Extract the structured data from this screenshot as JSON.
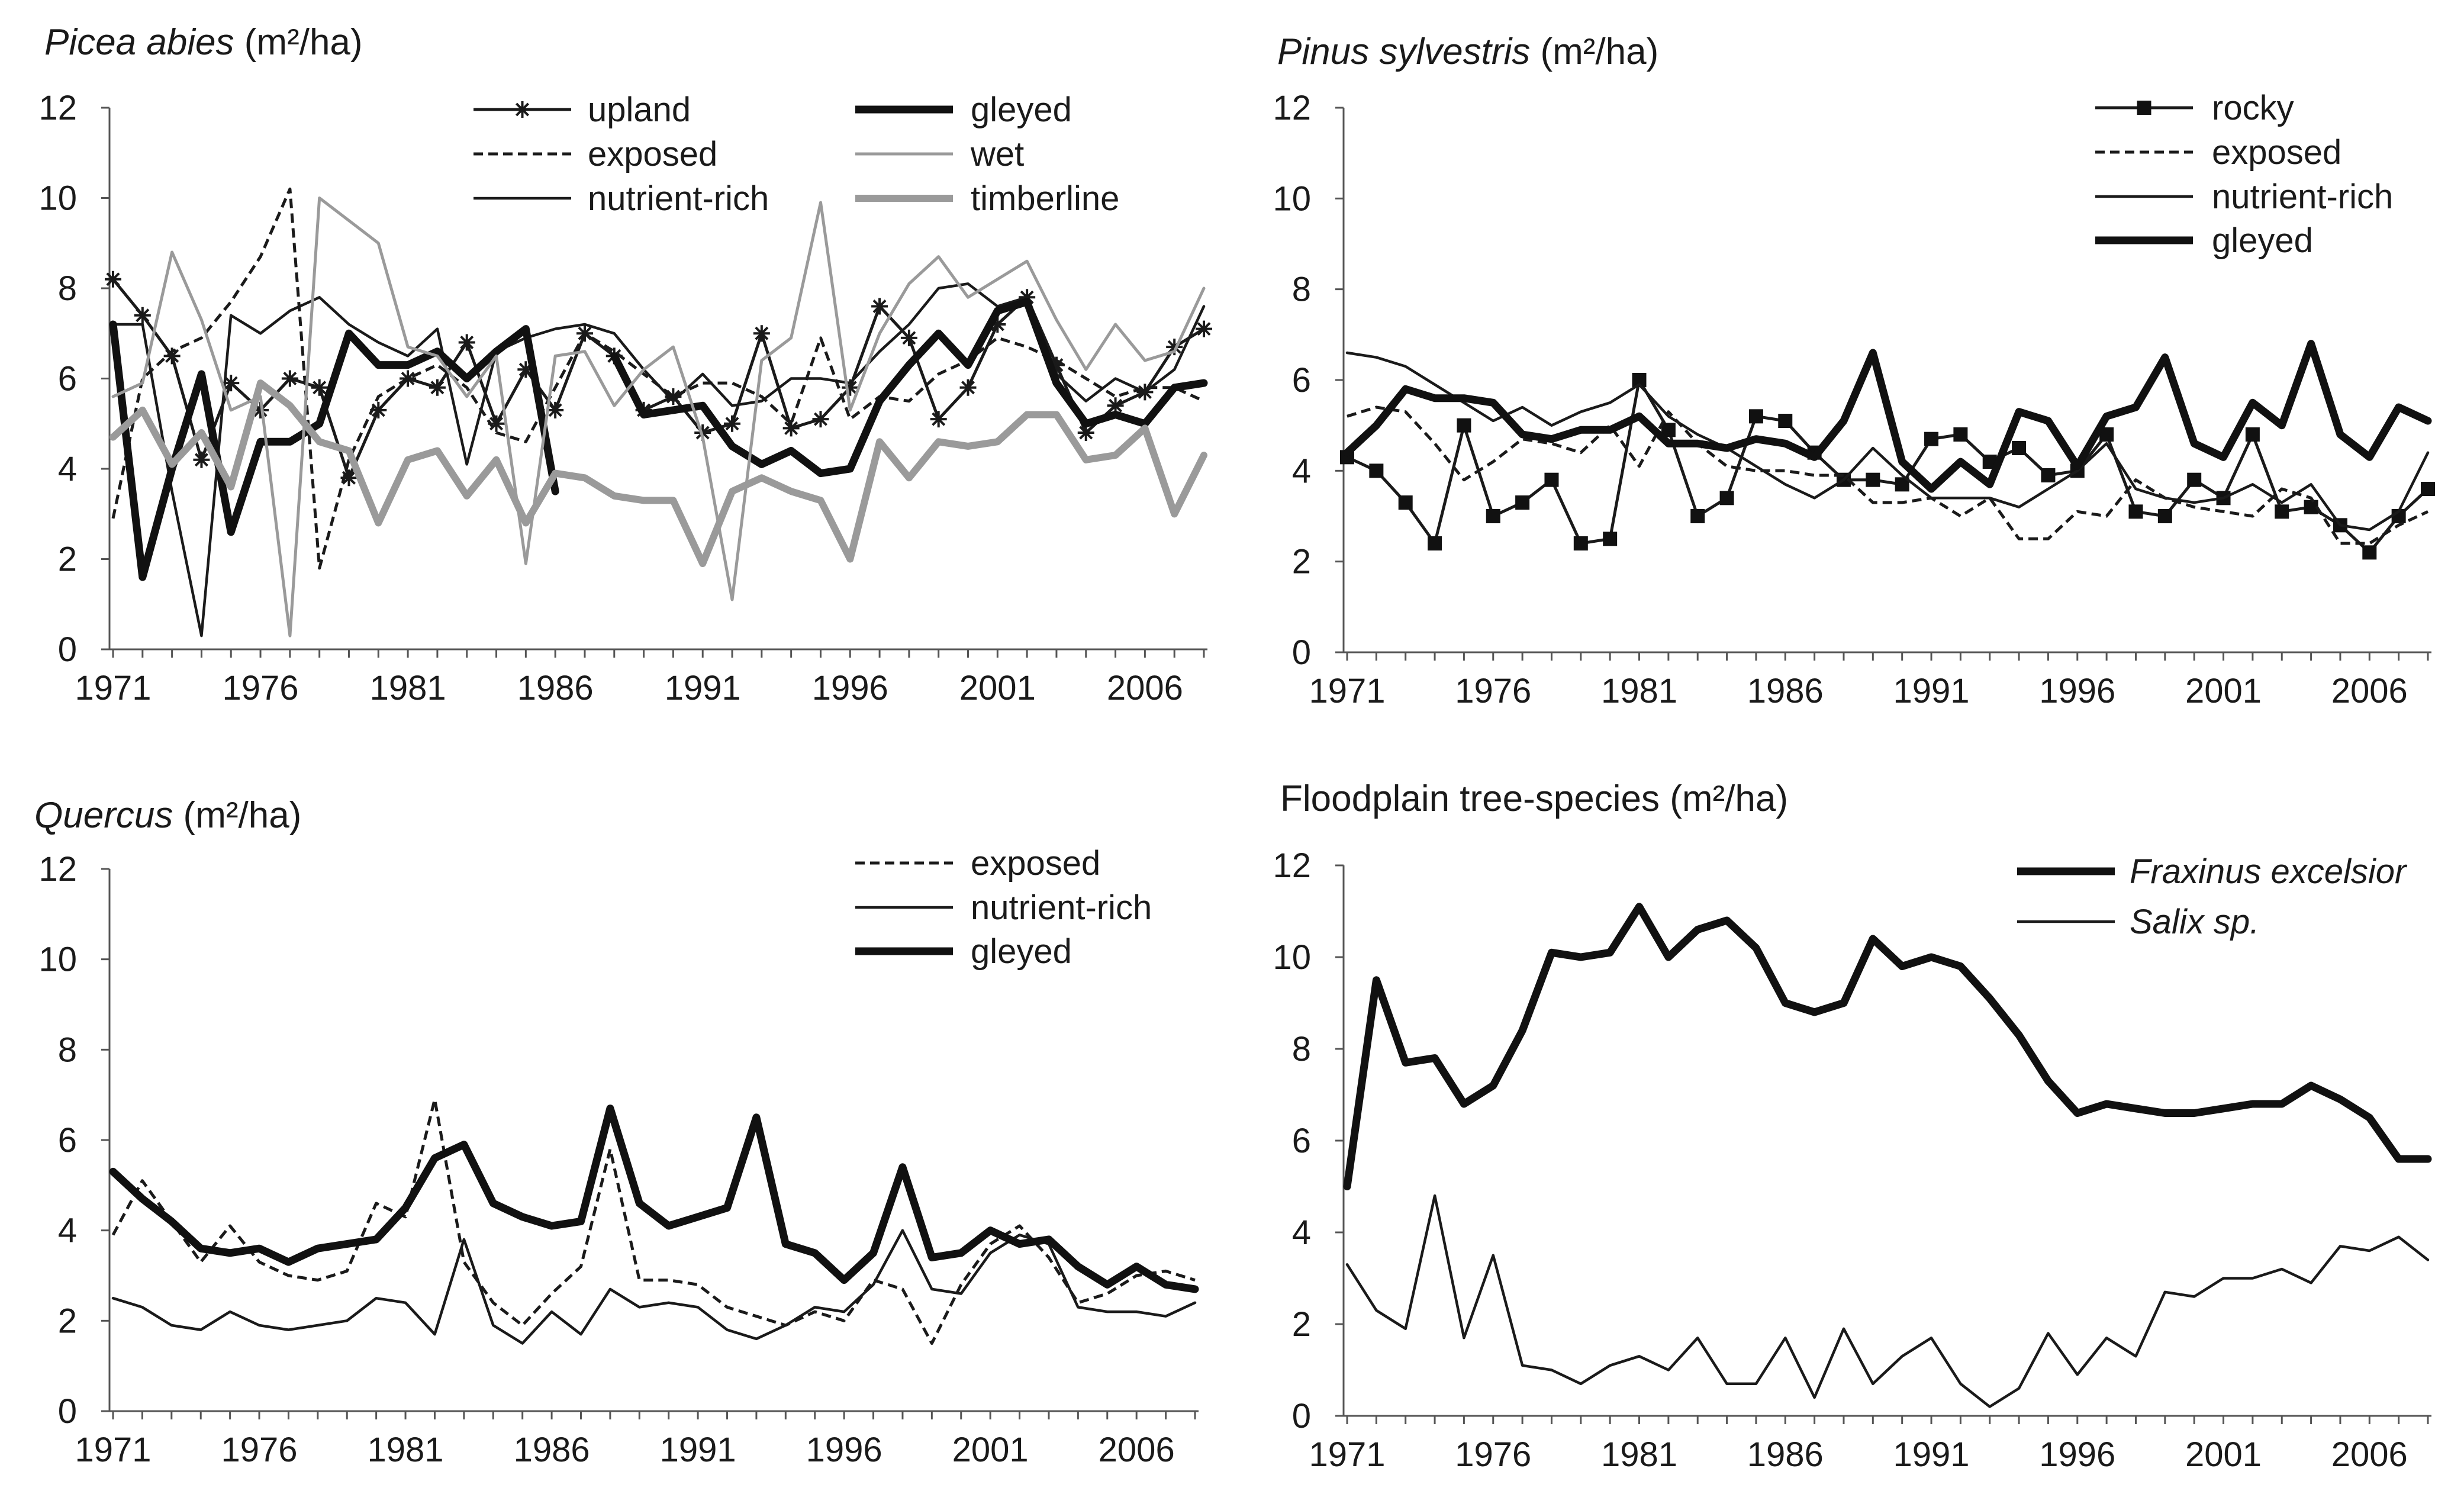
{
  "chart_data": [
    {
      "type": "line",
      "title_italic": "Picea abies",
      "title_rest": " (m²/ha)",
      "xlabel": "",
      "ylabel": "m²/ha",
      "ylim": [
        0,
        12
      ],
      "yticks": [
        0,
        2,
        4,
        6,
        8,
        10,
        12
      ],
      "xticks": [
        1971,
        1976,
        1981,
        1986,
        1991,
        1996,
        2001,
        2006
      ],
      "x_start": 1971,
      "x_end": 2008,
      "legend_position": "top",
      "series": [
        {
          "name": "upland",
          "italic": false,
          "style": "thin-star",
          "values": [
            8.2,
            7.4,
            6.5,
            4.2,
            5.9,
            5.3,
            6.0,
            5.8,
            3.8,
            5.3,
            6.0,
            5.8,
            6.8,
            5.0,
            6.2,
            5.3,
            7.0,
            6.5,
            5.3,
            5.6,
            4.8,
            5.0,
            7.0,
            4.9,
            5.1,
            5.8,
            7.6,
            6.9,
            5.1,
            5.8,
            7.2,
            7.8,
            6.3,
            4.8,
            5.4,
            5.7,
            6.7,
            7.1
          ]
        },
        {
          "name": "exposed",
          "italic": false,
          "style": "dashed",
          "values": [
            2.9,
            6.0,
            6.6,
            6.9,
            7.7,
            8.7,
            10.2,
            1.8,
            4.2,
            5.6,
            6.0,
            6.3,
            5.8,
            4.8,
            4.6,
            5.8,
            7.0,
            6.6,
            6.1,
            5.6,
            5.9,
            5.9,
            5.6,
            5.0,
            6.9,
            5.1,
            5.6,
            5.5,
            6.1,
            6.4,
            6.9,
            6.7,
            6.4,
            6.0,
            5.6,
            5.8,
            5.8,
            5.5
          ]
        },
        {
          "name": "nutrient-rich",
          "italic": false,
          "style": "thin",
          "values": [
            7.2,
            7.2,
            3.5,
            0.3,
            7.4,
            7.0,
            7.5,
            7.8,
            7.2,
            6.8,
            6.5,
            7.1,
            4.1,
            6.6,
            6.9,
            7.1,
            7.2,
            7.0,
            6.2,
            5.5,
            6.1,
            5.4,
            5.5,
            6.0,
            6.0,
            5.9,
            6.6,
            7.2,
            8.0,
            8.1,
            7.6,
            7.8,
            6.1,
            5.5,
            6.0,
            5.7,
            6.2,
            7.6
          ]
        },
        {
          "name": "gleyed",
          "italic": false,
          "style": "thick",
          "values": [
            7.2,
            1.6,
            4.0,
            6.1,
            2.6,
            4.6,
            4.6,
            5.0,
            7.0,
            6.3,
            6.3,
            6.6,
            6.0,
            6.6,
            7.1,
            3.5,
            null,
            6.5,
            5.2,
            5.3,
            5.4,
            4.5,
            4.1,
            4.4,
            3.9,
            4.0,
            5.5,
            6.3,
            7.0,
            6.3,
            7.5,
            7.7,
            5.9,
            5.0,
            5.2,
            5.0,
            5.8,
            5.9
          ]
        },
        {
          "name": "wet",
          "italic": false,
          "style": "thin-gray",
          "values": [
            5.6,
            5.9,
            8.8,
            7.3,
            5.3,
            5.6,
            0.3,
            10.0,
            9.5,
            9.0,
            6.7,
            6.5,
            5.6,
            6.5,
            1.9,
            6.5,
            6.6,
            5.4,
            6.2,
            6.7,
            4.7,
            1.1,
            6.4,
            6.9,
            9.9,
            5.3,
            7.0,
            8.1,
            8.7,
            7.8,
            8.2,
            8.6,
            7.3,
            6.2,
            7.2,
            6.4,
            6.6,
            8.0
          ]
        },
        {
          "name": "timberline",
          "italic": false,
          "style": "thick-gray",
          "values": [
            4.7,
            5.3,
            4.1,
            4.8,
            3.6,
            5.9,
            5.4,
            4.6,
            4.4,
            2.8,
            4.2,
            4.4,
            3.4,
            4.2,
            2.8,
            3.9,
            3.8,
            3.4,
            3.3,
            3.3,
            1.9,
            3.5,
            3.8,
            3.5,
            3.3,
            2.0,
            4.6,
            3.8,
            4.6,
            4.5,
            4.6,
            5.2,
            5.2,
            4.2,
            4.3,
            4.9,
            3.0,
            4.3
          ]
        }
      ]
    },
    {
      "type": "line",
      "title_italic": "Pinus sylvestris",
      "title_rest": " (m²/ha)",
      "xlabel": "",
      "ylabel": "m²/ha",
      "ylim": [
        0,
        12
      ],
      "yticks": [
        0,
        2,
        4,
        6,
        8,
        10,
        12
      ],
      "xticks": [
        1971,
        1976,
        1981,
        1986,
        1991,
        1996,
        2001,
        2006
      ],
      "x_start": 1971,
      "x_end": 2008,
      "legend_position": "top-right",
      "series": [
        {
          "name": "rocky",
          "italic": false,
          "style": "thin-square",
          "values": [
            4.3,
            4.0,
            3.3,
            2.4,
            5.0,
            3.0,
            3.3,
            3.8,
            2.4,
            2.5,
            6.0,
            4.9,
            3.0,
            3.4,
            5.2,
            5.1,
            4.4,
            3.8,
            3.8,
            3.7,
            4.7,
            4.8,
            4.2,
            4.5,
            3.9,
            4.0,
            4.8,
            3.1,
            3.0,
            3.8,
            3.4,
            4.8,
            3.1,
            3.2,
            2.8,
            2.2,
            3.0,
            3.6
          ]
        },
        {
          "name": "exposed",
          "italic": false,
          "style": "dashed",
          "values": [
            5.2,
            5.4,
            5.3,
            4.6,
            3.8,
            4.2,
            4.7,
            4.6,
            4.4,
            5.0,
            4.1,
            5.3,
            4.6,
            4.1,
            4.0,
            4.0,
            3.9,
            3.9,
            3.3,
            3.3,
            3.4,
            3.0,
            3.4,
            2.5,
            2.5,
            3.1,
            3.0,
            3.8,
            3.4,
            3.2,
            3.1,
            3.0,
            3.6,
            3.4,
            2.4,
            2.4,
            2.8,
            3.1
          ]
        },
        {
          "name": "nutrient-rich",
          "italic": false,
          "style": "thin",
          "values": [
            6.6,
            6.5,
            6.3,
            5.9,
            5.5,
            5.1,
            5.4,
            5.0,
            5.3,
            5.5,
            5.9,
            5.2,
            4.8,
            4.5,
            4.1,
            3.7,
            3.4,
            3.8,
            4.5,
            3.9,
            3.4,
            3.4,
            3.4,
            3.2,
            3.6,
            4.0,
            4.6,
            3.6,
            3.4,
            3.3,
            3.4,
            3.7,
            3.3,
            3.7,
            2.8,
            2.7,
            3.1,
            4.4
          ]
        },
        {
          "name": "gleyed",
          "italic": false,
          "style": "thick",
          "values": [
            4.4,
            5.0,
            5.8,
            5.6,
            5.6,
            5.5,
            4.8,
            4.7,
            4.9,
            4.9,
            5.2,
            4.6,
            4.6,
            4.5,
            4.7,
            4.6,
            4.3,
            5.1,
            6.6,
            4.2,
            3.6,
            4.2,
            3.7,
            5.3,
            5.1,
            4.1,
            5.2,
            5.4,
            6.5,
            4.6,
            4.3,
            5.5,
            5.0,
            6.8,
            4.8,
            4.3,
            5.4,
            5.1
          ]
        }
      ]
    },
    {
      "type": "line",
      "title_italic": "Quercus",
      "title_rest": " (m²/ha)",
      "xlabel": "",
      "ylabel": "m²/ha",
      "ylim": [
        0,
        12
      ],
      "yticks": [
        0,
        2,
        4,
        6,
        8,
        10,
        12
      ],
      "xticks": [
        1971,
        1976,
        1981,
        1986,
        1991,
        1996,
        2001,
        2006
      ],
      "x_start": 1971,
      "x_end": 2008,
      "legend_position": "top-right",
      "series": [
        {
          "name": "exposed",
          "italic": false,
          "style": "dashed",
          "values": [
            3.9,
            5.1,
            4.2,
            3.3,
            4.1,
            3.3,
            3.0,
            2.9,
            3.1,
            4.6,
            4.3,
            6.9,
            3.3,
            2.4,
            1.9,
            2.6,
            3.2,
            5.8,
            2.9,
            2.9,
            2.8,
            2.3,
            2.1,
            1.9,
            2.2,
            2.0,
            2.9,
            2.7,
            1.5,
            2.8,
            3.7,
            4.1,
            3.4,
            2.4,
            2.6,
            3.0,
            3.1,
            2.9
          ]
        },
        {
          "name": "nutrient-rich",
          "italic": false,
          "style": "thin",
          "values": [
            2.5,
            2.3,
            1.9,
            1.8,
            2.2,
            1.9,
            1.8,
            1.9,
            2.0,
            2.5,
            2.4,
            1.7,
            3.8,
            1.9,
            1.5,
            2.2,
            1.7,
            2.7,
            2.3,
            2.4,
            2.3,
            1.8,
            1.6,
            1.9,
            2.3,
            2.2,
            2.8,
            4.0,
            2.7,
            2.6,
            3.5,
            3.9,
            3.7,
            2.3,
            2.2,
            2.2,
            2.1,
            2.4
          ]
        },
        {
          "name": "gleyed",
          "italic": false,
          "style": "thick",
          "values": [
            5.3,
            4.7,
            4.2,
            3.6,
            3.5,
            3.6,
            3.3,
            3.6,
            3.7,
            3.8,
            4.5,
            5.6,
            5.9,
            4.6,
            4.3,
            4.1,
            4.2,
            6.7,
            4.6,
            4.1,
            4.3,
            4.5,
            6.5,
            3.7,
            3.5,
            2.9,
            3.5,
            5.4,
            3.4,
            3.5,
            4.0,
            3.7,
            3.8,
            3.2,
            2.8,
            3.2,
            2.8,
            2.7
          ]
        }
      ]
    },
    {
      "type": "line",
      "title_italic": "",
      "title_rest": "Floodplain tree-species (m²/ha)",
      "xlabel": "",
      "ylabel": "m²/ha",
      "ylim": [
        0,
        12
      ],
      "yticks": [
        0,
        2,
        4,
        6,
        8,
        10,
        12
      ],
      "xticks": [
        1971,
        1976,
        1981,
        1986,
        1991,
        1996,
        2001,
        2006
      ],
      "x_start": 1971,
      "x_end": 2008,
      "legend_position": "top-right",
      "series": [
        {
          "name": "Fraxinus excelsior",
          "italic": true,
          "style": "thick",
          "values": [
            5.0,
            9.5,
            7.7,
            7.8,
            6.8,
            7.2,
            8.4,
            10.1,
            10.0,
            10.1,
            11.1,
            10.0,
            10.6,
            10.8,
            10.2,
            9.0,
            8.8,
            9.0,
            10.4,
            9.8,
            10.0,
            9.8,
            9.1,
            8.3,
            7.3,
            6.6,
            6.8,
            6.7,
            6.6,
            6.6,
            6.7,
            6.8,
            6.8,
            7.2,
            6.9,
            6.5,
            5.6,
            5.6
          ]
        },
        {
          "name": "Salix sp.",
          "italic": true,
          "style": "thin",
          "values": [
            3.3,
            2.3,
            1.9,
            4.8,
            1.7,
            3.5,
            1.1,
            1.0,
            0.7,
            1.1,
            1.3,
            1.0,
            1.7,
            0.7,
            0.7,
            1.7,
            0.4,
            1.9,
            0.7,
            1.3,
            1.7,
            0.7,
            0.2,
            0.6,
            1.8,
            0.9,
            1.7,
            1.3,
            2.7,
            2.6,
            3.0,
            3.0,
            3.2,
            2.9,
            3.7,
            3.6,
            3.9,
            3.4
          ]
        }
      ]
    }
  ]
}
